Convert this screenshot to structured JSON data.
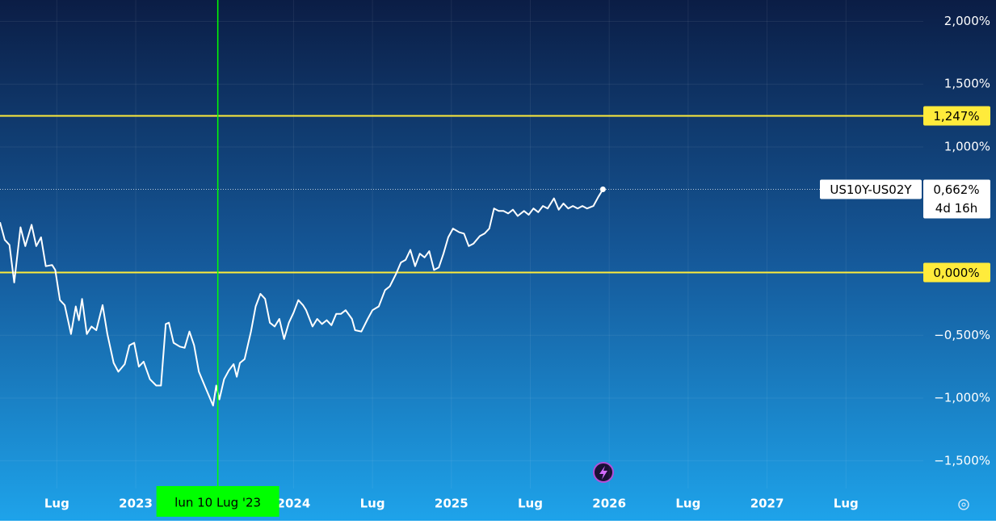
{
  "chart_data": {
    "type": "line",
    "x": [
      2022.14,
      2022.17,
      2022.2,
      2022.23,
      2022.27,
      2022.3,
      2022.34,
      2022.37,
      2022.4,
      2022.43,
      2022.47,
      2022.49,
      2022.52,
      2022.55,
      2022.59,
      2022.62,
      2022.64,
      2022.66,
      2022.69,
      2022.72,
      2022.75,
      2022.79,
      2022.82,
      2022.86,
      2022.89,
      2022.93,
      2022.96,
      2022.99,
      2023.02,
      2023.05,
      2023.09,
      2023.13,
      2023.16,
      2023.19,
      2023.21,
      2023.24,
      2023.28,
      2023.31,
      2023.34,
      2023.37,
      2023.4,
      2023.43,
      2023.46,
      2023.49,
      2023.51,
      2023.53,
      2023.56,
      2023.59,
      2023.62,
      2023.64,
      2023.66,
      2023.69,
      2023.73,
      2023.76,
      2023.79,
      2023.82,
      2023.85,
      2023.88,
      2023.91,
      2023.94,
      2023.97,
      2024.0,
      2024.03,
      2024.06,
      2024.08,
      2024.12,
      2024.15,
      2024.18,
      2024.21,
      2024.24,
      2024.27,
      2024.3,
      2024.33,
      2024.37,
      2024.39,
      2024.43,
      2024.47,
      2024.5,
      2024.54,
      2024.58,
      2024.61,
      2024.65,
      2024.68,
      2024.71,
      2024.74,
      2024.77,
      2024.8,
      2024.83,
      2024.86,
      2024.89,
      2024.92,
      2024.95,
      2024.98,
      2025.01,
      2025.05,
      2025.08,
      2025.11,
      2025.14,
      2025.18,
      2025.21,
      2025.24,
      2025.27,
      2025.3,
      2025.33,
      2025.36,
      2025.39,
      2025.42,
      2025.46,
      2025.49,
      2025.52,
      2025.55,
      2025.58,
      2025.61,
      2025.65,
      2025.68,
      2025.71,
      2025.74,
      2025.77,
      2025.8,
      2025.83,
      2025.86,
      2025.9,
      2025.93,
      2025.96
    ],
    "series": [
      {
        "name": "US10Y-US02Y",
        "color": "#ffffff",
        "values": [
          0.4,
          0.26,
          0.22,
          -0.08,
          0.36,
          0.21,
          0.38,
          0.21,
          0.28,
          0.05,
          0.06,
          0.02,
          -0.22,
          -0.26,
          -0.49,
          -0.27,
          -0.38,
          -0.21,
          -0.49,
          -0.43,
          -0.46,
          -0.26,
          -0.49,
          -0.72,
          -0.79,
          -0.73,
          -0.58,
          -0.56,
          -0.75,
          -0.71,
          -0.85,
          -0.9,
          -0.9,
          -0.41,
          -0.4,
          -0.56,
          -0.59,
          -0.6,
          -0.47,
          -0.58,
          -0.79,
          -0.88,
          -0.97,
          -1.06,
          -0.9,
          -1.01,
          -0.85,
          -0.78,
          -0.73,
          -0.83,
          -0.72,
          -0.69,
          -0.47,
          -0.27,
          -0.17,
          -0.21,
          -0.4,
          -0.43,
          -0.37,
          -0.53,
          -0.4,
          -0.32,
          -0.22,
          -0.26,
          -0.3,
          -0.43,
          -0.37,
          -0.41,
          -0.38,
          -0.42,
          -0.33,
          -0.33,
          -0.3,
          -0.37,
          -0.46,
          -0.47,
          -0.37,
          -0.3,
          -0.27,
          -0.14,
          -0.11,
          -0.01,
          0.08,
          0.1,
          0.18,
          0.05,
          0.15,
          0.12,
          0.17,
          0.02,
          0.04,
          0.15,
          0.28,
          0.35,
          0.32,
          0.31,
          0.21,
          0.23,
          0.29,
          0.31,
          0.35,
          0.51,
          0.49,
          0.49,
          0.47,
          0.5,
          0.45,
          0.49,
          0.46,
          0.51,
          0.48,
          0.53,
          0.51,
          0.59,
          0.5,
          0.55,
          0.51,
          0.53,
          0.51,
          0.53,
          0.51,
          0.53,
          0.6,
          0.662
        ],
        "last_value_label": "0,662%",
        "countdown": "4d 16h"
      }
    ],
    "xlim": [
      2022.14,
      2027.99
    ],
    "xticks": [
      {
        "value": 2022.5,
        "label": "Lug"
      },
      2023,
      2024,
      {
        "value": 2024.5,
        "label": "Lug"
      },
      2025,
      {
        "value": 2025.5,
        "label": "Lug"
      },
      2026,
      {
        "value": 2026.5,
        "label": "Lug"
      },
      2027,
      {
        "value": 2027.5,
        "label": "Lug"
      }
    ],
    "ylim": [
      -1.72,
      2.17
    ],
    "yticks": [
      {
        "value": 2,
        "label": "2,000%"
      },
      {
        "value": 1.5,
        "label": "1,500%"
      },
      {
        "value": 1,
        "label": "1,000%"
      },
      {
        "value": -0.5,
        "label": "−0,500%"
      },
      {
        "value": -1,
        "label": "−1,000%"
      },
      {
        "value": -1.5,
        "label": "−1,500%"
      }
    ],
    "hlines": [
      {
        "value": 1.247,
        "label": "1,247%"
      },
      {
        "value": 0,
        "label": "0,000%"
      }
    ],
    "hline_color": "#ffeb3b",
    "crosshair": {
      "x": 2023.52,
      "label": "lun 10 Lug '23",
      "color": "#00ff00"
    },
    "grid": true
  }
}
